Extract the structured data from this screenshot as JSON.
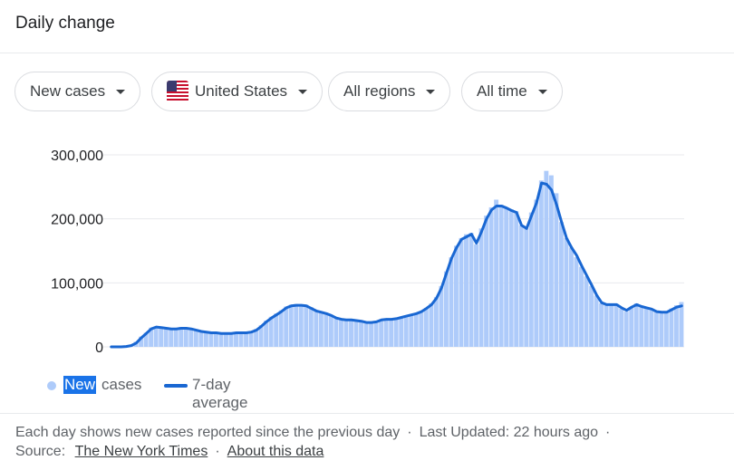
{
  "header": {
    "title": "Daily change"
  },
  "filters": {
    "metric": "New cases",
    "country": "United States",
    "region": "All regions",
    "period": "All time"
  },
  "colors": {
    "bars": "#aecbfa",
    "line": "#1967d2",
    "highlight": "#1a73e8"
  },
  "legend": {
    "new_highlight": "New",
    "cases_text": "cases",
    "avg_label": "7-day average"
  },
  "footer": {
    "note": "Each day shows new cases reported since the previous day",
    "sep": "·",
    "updated": "Last Updated: 22 hours ago",
    "source_label": "Source:",
    "source_link": "The New York Times",
    "about_link": "About this data"
  },
  "chart_data": {
    "type": "bar",
    "title": "",
    "xlabel": "",
    "ylabel": "",
    "ylim": [
      0,
      300000
    ],
    "yticks": [
      0,
      100000,
      200000,
      300000
    ],
    "ytick_labels": [
      "0",
      "100,000",
      "200,000",
      "300,000"
    ],
    "grid": true,
    "legend_position": "bottom",
    "series": [
      {
        "name": "New cases",
        "kind": "bar",
        "values": [
          0,
          0,
          0,
          1000,
          3000,
          8000,
          16000,
          22000,
          30000,
          32000,
          30000,
          29000,
          28000,
          29000,
          31000,
          30000,
          28000,
          26000,
          24000,
          23000,
          23000,
          22000,
          21000,
          21000,
          22000,
          23000,
          22000,
          22000,
          24000,
          28000,
          34000,
          41000,
          47000,
          52000,
          57000,
          63000,
          66000,
          67000,
          66000,
          66000,
          62000,
          57000,
          55000,
          53000,
          50000,
          46000,
          44000,
          43000,
          43000,
          42000,
          40000,
          39000,
          39000,
          40000,
          43000,
          44000,
          44000,
          45000,
          47000,
          49000,
          51000,
          53000,
          56000,
          61000,
          68000,
          78000,
          95000,
          118000,
          140000,
          158000,
          170000,
          176000,
          178000,
          160000,
          185000,
          205000,
          218000,
          230000,
          222000,
          218000,
          215000,
          212000,
          190000,
          185000,
          210000,
          230000,
          260000,
          275000,
          268000,
          240000,
          195000,
          170000,
          155000,
          140000,
          125000,
          110000,
          95000,
          80000,
          68000,
          65000,
          66000,
          67000,
          60000,
          55000,
          62000,
          68000,
          64000,
          62000,
          60000,
          55000,
          55000,
          55000,
          60000,
          65000,
          70000
        ]
      },
      {
        "name": "7-day average",
        "kind": "line",
        "values": [
          0,
          0,
          0,
          500,
          2000,
          6000,
          14000,
          21000,
          28000,
          31000,
          30000,
          29000,
          28000,
          28000,
          29000,
          29000,
          28000,
          26000,
          24000,
          23000,
          22000,
          22000,
          21000,
          21000,
          21000,
          22000,
          22000,
          22000,
          23000,
          26000,
          32000,
          39000,
          45000,
          50000,
          55000,
          61000,
          64000,
          65000,
          65000,
          64000,
          60000,
          56000,
          54000,
          52000,
          49000,
          45000,
          43000,
          42000,
          42000,
          41000,
          40000,
          38000,
          38000,
          39000,
          42000,
          43000,
          43000,
          44000,
          46000,
          48000,
          50000,
          52000,
          55000,
          60000,
          66000,
          76000,
          92000,
          115000,
          138000,
          155000,
          168000,
          172000,
          176000,
          162000,
          180000,
          200000,
          214000,
          220000,
          220000,
          217000,
          213000,
          210000,
          190000,
          185000,
          205000,
          225000,
          256000,
          254000,
          245000,
          222000,
          195000,
          170000,
          155000,
          143000,
          127000,
          112000,
          97000,
          81000,
          69000,
          66000,
          66000,
          66000,
          61000,
          57000,
          62000,
          66000,
          63000,
          61000,
          59000,
          55000,
          54000,
          54000,
          58000,
          62000,
          64000
        ]
      }
    ]
  }
}
